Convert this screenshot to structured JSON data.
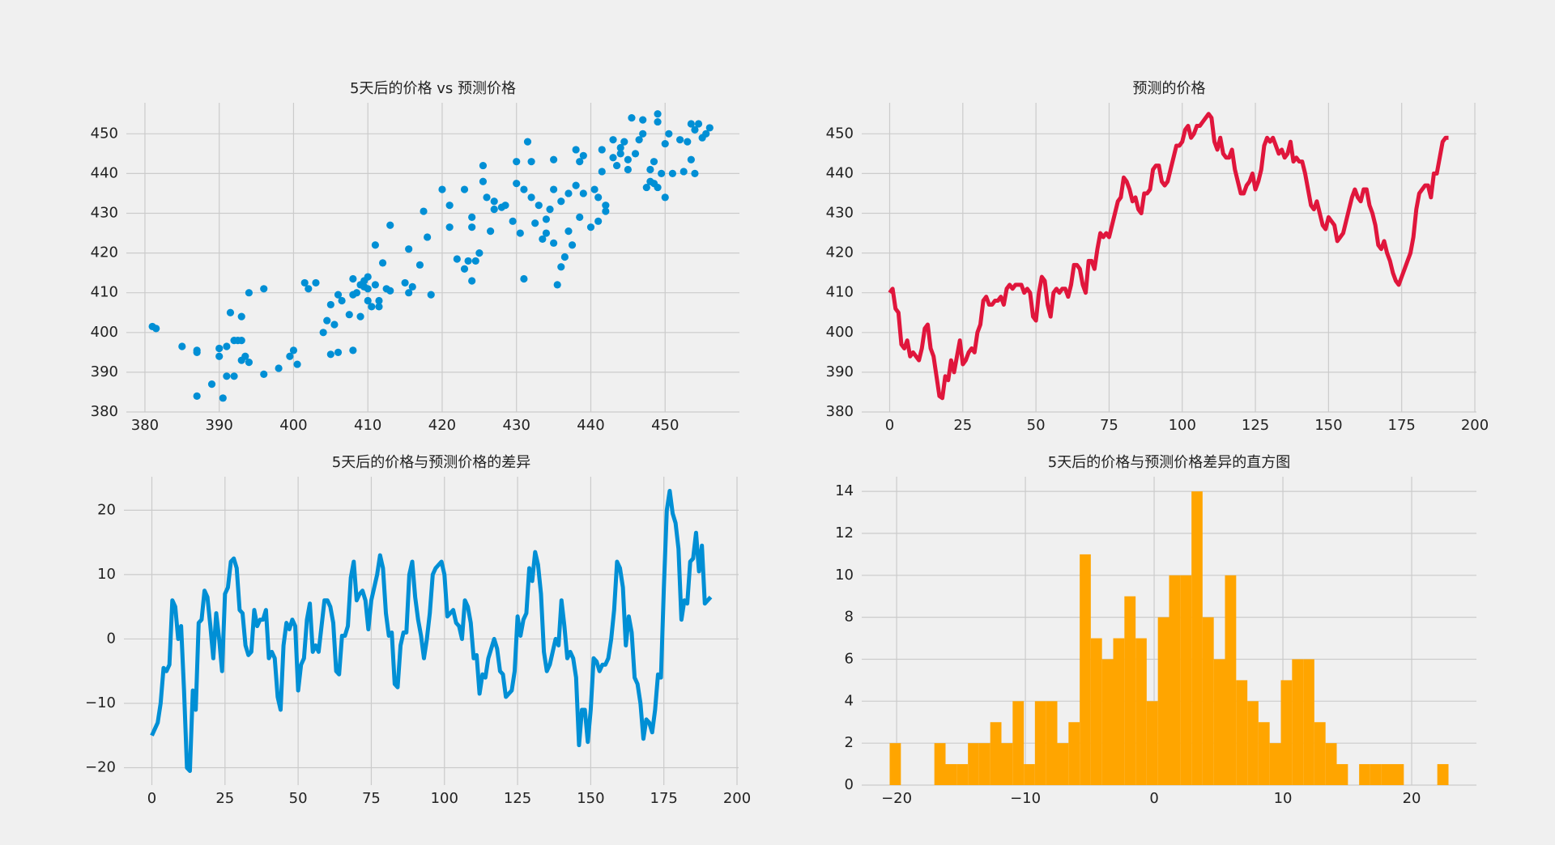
{
  "chart_data": [
    {
      "type": "scatter",
      "title": "5天后的价格 vs 预测价格",
      "color": "#008fd5",
      "grid": true,
      "xlim": [
        377.5,
        460
      ],
      "ylim": [
        380,
        457.8
      ],
      "xticks": [
        380,
        390,
        400,
        410,
        420,
        430,
        440,
        450
      ],
      "yticks": [
        380,
        390,
        400,
        410,
        420,
        430,
        440,
        450
      ],
      "x": [
        381,
        381.5,
        385,
        387,
        387,
        387,
        389,
        390,
        390,
        390.5,
        391,
        391,
        391.5,
        392,
        392,
        392.5,
        393,
        393,
        393,
        393.5,
        394,
        394,
        396,
        396,
        398,
        399.5,
        400,
        400.5,
        401.5,
        402,
        403,
        404,
        404.5,
        405,
        405,
        405.5,
        406,
        406,
        406.5,
        407.5,
        408,
        408,
        408,
        408.5,
        409,
        409,
        409.5,
        409.5,
        410,
        410,
        410,
        410.5,
        411,
        411,
        411.5,
        411.5,
        412,
        412.5,
        413,
        413,
        415,
        415.5,
        415.5,
        416,
        417,
        417.5,
        418,
        418.5,
        420,
        421,
        421,
        422,
        423,
        423,
        423.5,
        424,
        424,
        424,
        424.5,
        425,
        425.5,
        425.5,
        426,
        426.5,
        427,
        427,
        428,
        428.5,
        429.5,
        430,
        430,
        430.5,
        431,
        431,
        431.5,
        432,
        432,
        432.5,
        433,
        433.5,
        434,
        434,
        434.5,
        435,
        435,
        435,
        435.5,
        436,
        436,
        436.5,
        437,
        437,
        437.5,
        438,
        438,
        438.5,
        438.5,
        439,
        439,
        440,
        440.5,
        441,
        441,
        441.5,
        441.5,
        442,
        442,
        443,
        443,
        443.5,
        444,
        444,
        444.5,
        445,
        445,
        445.5,
        446,
        446.5,
        447,
        447,
        447.5,
        448,
        448,
        448.5,
        448.5,
        449,
        449,
        449,
        449.5,
        450,
        450,
        450.5,
        451,
        452,
        452.5,
        453,
        453.5,
        453.5,
        454,
        454,
        454.5,
        455,
        455.5,
        456
      ],
      "values": [
        401.5,
        401,
        396.5,
        395.5,
        384,
        395,
        387,
        396,
        394,
        383.5,
        389,
        396.5,
        405,
        398,
        389,
        398,
        404,
        398,
        393,
        394,
        410,
        392.5,
        411,
        389.5,
        391,
        394,
        395.5,
        392,
        412.5,
        411,
        412.5,
        400,
        403,
        407,
        394.5,
        402,
        395,
        409.5,
        408,
        404.5,
        409.5,
        413.5,
        395.5,
        410,
        412,
        404,
        413,
        411.5,
        414,
        411,
        408,
        406.5,
        412,
        422,
        408,
        406.5,
        417.5,
        411,
        427,
        410.5,
        412.5,
        410,
        421,
        411.5,
        417,
        430.5,
        424,
        409.5,
        436,
        432,
        426.5,
        418.5,
        416,
        436,
        418,
        426.5,
        429,
        413,
        418,
        420,
        442,
        438,
        434,
        425.5,
        433,
        431,
        431.5,
        432,
        428,
        437.5,
        443,
        425,
        413.5,
        436,
        448,
        434,
        443,
        427.5,
        432,
        423.5,
        425,
        428.5,
        431,
        436,
        443.5,
        422.5,
        412,
        433,
        416.5,
        419,
        425.5,
        435,
        422,
        437,
        446,
        429,
        443,
        435,
        444.5,
        426.5,
        436,
        428,
        434,
        440.5,
        446,
        432,
        430.5,
        444,
        448.5,
        442,
        445,
        446.5,
        448,
        441,
        443.5,
        454,
        445,
        448.5,
        450,
        453.5,
        436.5,
        438,
        441,
        443,
        437.5,
        453,
        455,
        436.5,
        440,
        434,
        447.5,
        450,
        440,
        448.5,
        440.5,
        448,
        443.5,
        452.5,
        440,
        451,
        452.5,
        449,
        450,
        451.5
      ]
    },
    {
      "type": "line",
      "title": "预测的价格",
      "color": "#e0163c",
      "grid": true,
      "xlim": [
        -9.55,
        200.55
      ],
      "ylim": [
        380,
        457.8
      ],
      "xticks": [
        0,
        25,
        50,
        75,
        100,
        125,
        150,
        175,
        200
      ],
      "yticks": [
        380,
        390,
        400,
        410,
        420,
        430,
        440,
        450
      ],
      "values": [
        410,
        411,
        406,
        405,
        397,
        396,
        398,
        394,
        395,
        394,
        393,
        396,
        401,
        402,
        396,
        394,
        389,
        384,
        383.5,
        389,
        388,
        393,
        390,
        394,
        398,
        392,
        393,
        395,
        396,
        395,
        400,
        402,
        408,
        409,
        407,
        407,
        408,
        408,
        409,
        407,
        411,
        412,
        411,
        412,
        412,
        412,
        410,
        411,
        410,
        404,
        403,
        410,
        414,
        413,
        407,
        404,
        410,
        411,
        410,
        411,
        411,
        409,
        412,
        417,
        417,
        416,
        412,
        410,
        418,
        418,
        416,
        421,
        425,
        424,
        425,
        424,
        427,
        430,
        433,
        434,
        439,
        438,
        436,
        433,
        434,
        431,
        430,
        435,
        435,
        436,
        441,
        442,
        442,
        438,
        437,
        438,
        441,
        444,
        447,
        447,
        448,
        451,
        452,
        449,
        450,
        452,
        452,
        453,
        454,
        455,
        454,
        448,
        446,
        449,
        445,
        444,
        444,
        446,
        441,
        438,
        435,
        435,
        437,
        438,
        440,
        436,
        438,
        441,
        447,
        449,
        448,
        449,
        447,
        445,
        446,
        444,
        445,
        448,
        443,
        444,
        443,
        443,
        440,
        436,
        432,
        431,
        433,
        430,
        427,
        426,
        429,
        428,
        427,
        423,
        424,
        425,
        428,
        431,
        434,
        436,
        434,
        433,
        436,
        436,
        432,
        430,
        427,
        422,
        421,
        423,
        420,
        418,
        415,
        413,
        412,
        414,
        416,
        418,
        420,
        424,
        431,
        435,
        436,
        437,
        437,
        434,
        440,
        440,
        444,
        448,
        449,
        449
      ]
    },
    {
      "type": "line",
      "title": "5天后的价格与预测价格的差异",
      "color": "#008fd5",
      "grid": true,
      "xlim": [
        -9.55,
        200.55
      ],
      "ylim": [
        -22.7,
        25.2
      ],
      "xticks": [
        0,
        25,
        50,
        75,
        100,
        125,
        150,
        175,
        200
      ],
      "yticks": [
        {
          "value": -20,
          "label": "−20"
        },
        {
          "value": -10,
          "label": "−10"
        },
        0,
        10,
        20
      ],
      "values": [
        -15,
        -14,
        -13,
        -10,
        -4.5,
        -5,
        -4,
        6,
        5,
        0,
        2,
        -8,
        -20,
        -20.5,
        -8,
        -11,
        2.5,
        3,
        7.5,
        6.5,
        2,
        -3,
        4,
        0,
        -5,
        7,
        8,
        12,
        12.5,
        11,
        4.5,
        4,
        -1,
        -2.5,
        -2,
        4.5,
        2,
        3,
        3,
        4.5,
        -3,
        -2,
        -3,
        -9,
        -11,
        -1,
        2.5,
        1.5,
        3,
        2,
        -8,
        -4,
        -3,
        3,
        5.5,
        -2,
        -1,
        -2,
        2,
        6,
        6,
        5,
        2.5,
        -5,
        -5.5,
        0.5,
        0.5,
        2,
        9.5,
        12,
        6,
        7,
        7.5,
        6,
        1.5,
        6,
        8,
        10,
        13,
        11,
        4,
        0.5,
        1,
        -7,
        -7.5,
        -1,
        1,
        1,
        10,
        12,
        6.5,
        3,
        0.5,
        -3,
        0,
        4,
        10,
        11,
        11.5,
        12,
        10,
        3.5,
        4,
        4.5,
        2.5,
        2,
        0,
        6,
        5,
        2.5,
        -3,
        -2.5,
        -8.5,
        -5.5,
        -6,
        -3,
        -1.5,
        0,
        -1.5,
        -5,
        -5.5,
        -9,
        -8.5,
        -8,
        -5,
        3.5,
        0.5,
        3,
        4,
        11,
        9,
        13.5,
        11.5,
        7,
        -2,
        -5,
        -4,
        -2,
        0,
        -1,
        6,
        2,
        -3,
        -2,
        -3,
        -6,
        -16.5,
        -11,
        -11,
        -16,
        -11,
        -3,
        -3.5,
        -5,
        -4,
        -4,
        -3,
        0,
        4.5,
        12,
        11,
        8,
        -1,
        3.5,
        1,
        -6,
        -7,
        -10,
        -15.5,
        -12.5,
        -13,
        -14.5,
        -11,
        -5.5,
        -6,
        8,
        20,
        23,
        19.5,
        18,
        14,
        3,
        6,
        5.5,
        12,
        12.5,
        16.5,
        10.5,
        14.5,
        5.5,
        6,
        6.5
      ]
    },
    {
      "type": "histogram",
      "title": "5天后的价格与预测价格差异的直方图",
      "color": "#ffa500",
      "grid": true,
      "xlim": [
        -22.71,
        25.03
      ],
      "ylim": [
        0,
        14.7
      ],
      "xticks": [
        {
          "value": -20,
          "label": "−20"
        },
        {
          "value": -10,
          "label": "−10"
        },
        0,
        10,
        20
      ],
      "yticks": [
        0,
        2,
        4,
        6,
        8,
        10,
        12,
        14
      ],
      "bins": [
        -20.54,
        -19.67,
        -18.8,
        -17.94,
        -17.07,
        -16.2,
        -15.33,
        -14.46,
        -13.6,
        -12.73,
        -11.86,
        -10.99,
        -10.12,
        -9.26,
        -8.39,
        -7.52,
        -6.65,
        -5.78,
        -4.92,
        -4.05,
        -3.18,
        -2.31,
        -1.44,
        -0.58,
        0.29,
        1.16,
        2.03,
        2.9,
        3.76,
        4.63,
        5.5,
        6.37,
        7.24,
        8.1,
        8.97,
        9.84,
        10.71,
        11.58,
        12.44,
        13.31,
        14.18,
        15.05,
        15.92,
        16.78,
        17.65,
        18.52,
        19.39,
        20.26,
        21.12,
        21.99,
        22.86
      ],
      "values": [
        2,
        0,
        0,
        0,
        2,
        1,
        1,
        2,
        2,
        3,
        2,
        4,
        1,
        4,
        4,
        2,
        3,
        11,
        7,
        6,
        7,
        9,
        7,
        4,
        8,
        10,
        10,
        14,
        8,
        6,
        10,
        5,
        4,
        3,
        2,
        5,
        6,
        6,
        3,
        2,
        1,
        0,
        1,
        1,
        1,
        1,
        0,
        0,
        0,
        1
      ]
    }
  ]
}
